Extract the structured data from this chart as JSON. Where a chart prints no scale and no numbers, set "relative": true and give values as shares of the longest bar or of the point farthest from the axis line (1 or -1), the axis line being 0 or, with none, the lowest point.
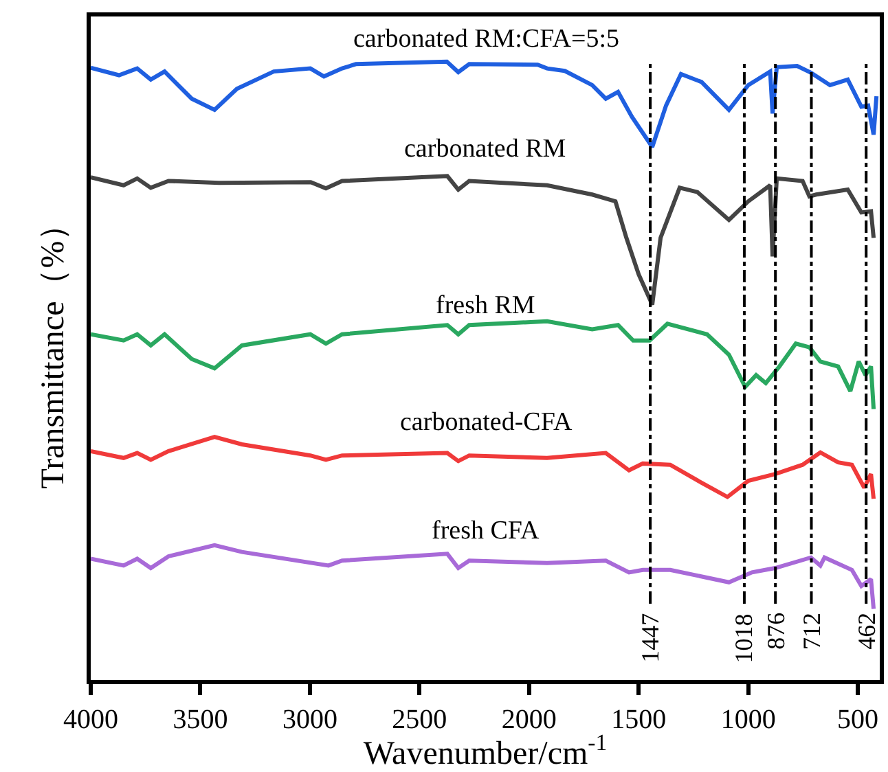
{
  "chart_data": {
    "type": "line",
    "xlabel": "Wavenumber/cm$^{-1}$",
    "ylabel": "Transmittance（%）",
    "relative": true,
    "xlim": [
      4000,
      400
    ],
    "xticks": [
      4000,
      3500,
      3000,
      2500,
      2000,
      1500,
      1000,
      500
    ],
    "grid": false,
    "legend": false,
    "marker": "none",
    "line_style": "solid",
    "series": [
      {
        "name": "carbonated RM:CFA=5:5",
        "color": "#1f5fe0",
        "x": [
          4000,
          3871,
          3788,
          3726,
          3663,
          3539,
          3435,
          3333,
          3165,
          2998,
          2936,
          2853,
          2790,
          2375,
          2323,
          2273,
          1961,
          1918,
          1837,
          1712,
          1650,
          1594,
          1531,
          1438,
          1375,
          1307,
          1213,
          1088,
          1000,
          900,
          889,
          870,
          777,
          714,
          627,
          546,
          484,
          453,
          428,
          415
        ],
        "values": [
          0.99,
          0.978,
          0.989,
          0.971,
          0.984,
          0.94,
          0.922,
          0.956,
          0.984,
          0.989,
          0.976,
          0.989,
          0.996,
          1,
          0.983,
          0.996,
          0.995,
          0.989,
          0.985,
          0.962,
          0.94,
          0.951,
          0.911,
          0.862,
          0.929,
          0.98,
          0.967,
          0.922,
          0.962,
          0.984,
          0.916,
          0.991,
          0.993,
          0.982,
          0.962,
          0.971,
          0.927,
          0.929,
          0.882,
          0.944
        ]
      },
      {
        "name": "carbonated RM",
        "color": "#444444",
        "x": [
          4000,
          3850,
          3788,
          3726,
          3645,
          3414,
          2996,
          2927,
          2853,
          2373,
          2323,
          2273,
          1918,
          1712,
          1606,
          1556,
          1500,
          1438,
          1400,
          1313,
          1232,
          1088,
          1000,
          900,
          889,
          870,
          752,
          721,
          690,
          546,
          484,
          440,
          428
        ],
        "values": [
          0.813,
          0.8,
          0.811,
          0.796,
          0.807,
          0.804,
          0.805,
          0.795,
          0.807,
          0.815,
          0.793,
          0.807,
          0.8,
          0.785,
          0.774,
          0.715,
          0.656,
          0.607,
          0.715,
          0.796,
          0.789,
          0.744,
          0.774,
          0.8,
          0.685,
          0.811,
          0.807,
          0.782,
          0.785,
          0.793,
          0.756,
          0.758,
          0.715
        ]
      },
      {
        "name": "fresh RM",
        "color": "#2aa860",
        "x": [
          4000,
          3850,
          3788,
          3726,
          3663,
          3539,
          3435,
          3310,
          2998,
          2927,
          2853,
          2373,
          2323,
          2273,
          1918,
          1712,
          1594,
          1525,
          1450,
          1369,
          1188,
          1088,
          1014,
          964,
          920,
          858,
          783,
          721,
          671,
          590,
          534,
          496,
          465,
          440,
          428
        ],
        "values": [
          0.559,
          0.549,
          0.559,
          0.541,
          0.559,
          0.519,
          0.504,
          0.541,
          0.559,
          0.544,
          0.559,
          0.574,
          0.559,
          0.574,
          0.58,
          0.567,
          0.574,
          0.549,
          0.549,
          0.576,
          0.559,
          0.526,
          0.474,
          0.493,
          0.48,
          0.507,
          0.544,
          0.538,
          0.515,
          0.507,
          0.467,
          0.515,
          0.493,
          0.507,
          0.438
        ]
      },
      {
        "name": "carbonated-CFA",
        "color": "#f03a3a",
        "x": [
          4000,
          3850,
          3788,
          3726,
          3645,
          3435,
          3310,
          2998,
          2927,
          2853,
          2373,
          2323,
          2273,
          1918,
          1650,
          1544,
          1481,
          1356,
          1213,
          1095,
          1000,
          877,
          752,
          671,
          590,
          527,
          471,
          440,
          428
        ],
        "values": [
          0.37,
          0.359,
          0.367,
          0.356,
          0.37,
          0.393,
          0.381,
          0.363,
          0.356,
          0.363,
          0.367,
          0.354,
          0.363,
          0.359,
          0.367,
          0.339,
          0.35,
          0.348,
          0.319,
          0.296,
          0.322,
          0.333,
          0.348,
          0.368,
          0.352,
          0.348,
          0.311,
          0.333,
          0.293
        ]
      },
      {
        "name": "fresh CFA",
        "color": "#a86ad8",
        "x": [
          4000,
          3850,
          3788,
          3726,
          3645,
          3435,
          3310,
          2915,
          2853,
          2373,
          2323,
          2273,
          1918,
          1650,
          1544,
          1481,
          1356,
          1088,
          983,
          877,
          714,
          671,
          652,
          527,
          484,
          440,
          428
        ],
        "values": [
          0.196,
          0.185,
          0.196,
          0.181,
          0.2,
          0.218,
          0.207,
          0.185,
          0.193,
          0.204,
          0.181,
          0.193,
          0.189,
          0.193,
          0.174,
          0.178,
          0.178,
          0.158,
          0.174,
          0.181,
          0.198,
          0.185,
          0.198,
          0.178,
          0.152,
          0.163,
          0.115
        ]
      }
    ],
    "ref_lines": [
      {
        "axis": "x",
        "value": 1447,
        "label": "1447",
        "color": "#000000",
        "line_style": "dashdot"
      },
      {
        "axis": "x",
        "value": 1018,
        "label": "1018",
        "color": "#000000",
        "line_style": "dashdot"
      },
      {
        "axis": "x",
        "value": 876,
        "label": "876",
        "color": "#000000",
        "line_style": "dashdot"
      },
      {
        "axis": "x",
        "value": 712,
        "label": "712",
        "color": "#000000",
        "line_style": "dashdot"
      },
      {
        "axis": "x",
        "value": 462,
        "label": "462",
        "color": "#000000",
        "line_style": "dashdot"
      }
    ]
  }
}
